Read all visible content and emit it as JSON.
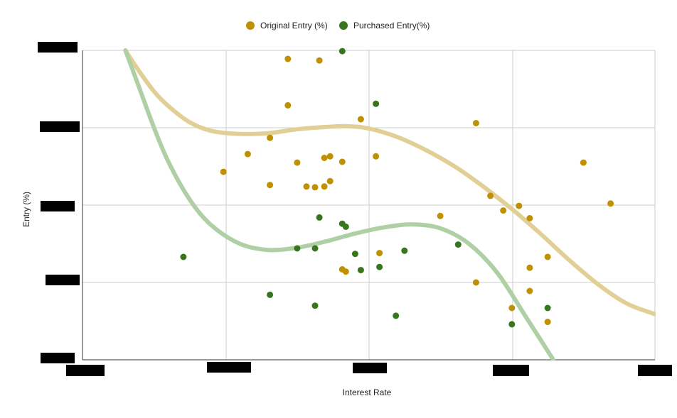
{
  "chart_data": {
    "type": "scatter",
    "title": "",
    "xlabel": "Interest Rate",
    "ylabel": "Entry (%)",
    "x_range": [
      0,
      8
    ],
    "y_range": [
      0,
      4
    ],
    "grid": true,
    "legend_position": "top",
    "tick_labels_redacted": true,
    "series": [
      {
        "name": "Original Entry (%)",
        "color": "#BF9000",
        "trend_color": "#E2CF96",
        "points": [
          [
            1.97,
            2.43
          ],
          [
            2.31,
            2.66
          ],
          [
            2.62,
            2.87
          ],
          [
            2.62,
            2.26
          ],
          [
            2.87,
            3.89
          ],
          [
            2.87,
            3.29
          ],
          [
            3.0,
            2.55
          ],
          [
            3.13,
            2.24
          ],
          [
            3.25,
            2.23
          ],
          [
            3.31,
            3.87
          ],
          [
            3.38,
            2.61
          ],
          [
            3.38,
            2.24
          ],
          [
            3.46,
            2.31
          ],
          [
            3.46,
            2.63
          ],
          [
            3.63,
            2.56
          ],
          [
            3.63,
            1.17
          ],
          [
            3.68,
            1.14
          ],
          [
            3.89,
            3.11
          ],
          [
            4.1,
            2.63
          ],
          [
            4.15,
            1.38
          ],
          [
            5.0,
            1.86
          ],
          [
            5.5,
            1.0
          ],
          [
            5.5,
            3.06
          ],
          [
            5.7,
            2.12
          ],
          [
            5.88,
            1.93
          ],
          [
            6.0,
            0.67
          ],
          [
            6.1,
            1.99
          ],
          [
            6.25,
            1.83
          ],
          [
            6.25,
            1.19
          ],
          [
            6.25,
            0.89
          ],
          [
            6.5,
            1.33
          ],
          [
            6.5,
            0.49
          ],
          [
            7.0,
            2.55
          ],
          [
            7.38,
            2.02
          ]
        ],
        "trendline": [
          [
            0.6,
            4.0
          ],
          [
            0.8,
            3.72
          ],
          [
            1.0,
            3.47
          ],
          [
            1.2,
            3.28
          ],
          [
            1.5,
            3.07
          ],
          [
            1.8,
            2.96
          ],
          [
            2.2,
            2.92
          ],
          [
            2.6,
            2.93
          ],
          [
            3.0,
            2.98
          ],
          [
            3.4,
            3.01
          ],
          [
            3.7,
            3.02
          ],
          [
            4.0,
            2.99
          ],
          [
            4.4,
            2.88
          ],
          [
            4.8,
            2.71
          ],
          [
            5.2,
            2.5
          ],
          [
            5.6,
            2.24
          ],
          [
            6.0,
            1.95
          ],
          [
            6.4,
            1.63
          ],
          [
            6.8,
            1.29
          ],
          [
            7.2,
            0.98
          ],
          [
            7.6,
            0.73
          ],
          [
            8.0,
            0.59
          ]
        ]
      },
      {
        "name": "Purchased Entry(%)",
        "color": "#38761D",
        "trend_color": "#AFCFA5",
        "points": [
          [
            3.63,
            3.99
          ],
          [
            4.1,
            3.31
          ],
          [
            3.31,
            1.84
          ],
          [
            3.63,
            1.76
          ],
          [
            3.68,
            1.72
          ],
          [
            3.0,
            1.44
          ],
          [
            3.25,
            1.44
          ],
          [
            1.41,
            1.33
          ],
          [
            3.81,
            1.37
          ],
          [
            3.89,
            1.16
          ],
          [
            4.15,
            1.2
          ],
          [
            4.5,
            1.41
          ],
          [
            5.25,
            1.49
          ],
          [
            2.62,
            0.84
          ],
          [
            3.25,
            0.7
          ],
          [
            4.38,
            0.57
          ],
          [
            6.0,
            0.46
          ],
          [
            6.5,
            0.67
          ]
        ],
        "trendline": [
          [
            0.6,
            4.0
          ],
          [
            0.8,
            3.5
          ],
          [
            1.0,
            3.0
          ],
          [
            1.2,
            2.56
          ],
          [
            1.5,
            2.07
          ],
          [
            1.8,
            1.74
          ],
          [
            2.2,
            1.5
          ],
          [
            2.6,
            1.42
          ],
          [
            3.0,
            1.45
          ],
          [
            3.4,
            1.53
          ],
          [
            3.8,
            1.63
          ],
          [
            4.2,
            1.71
          ],
          [
            4.6,
            1.75
          ],
          [
            5.0,
            1.7
          ],
          [
            5.4,
            1.5
          ],
          [
            5.8,
            1.12
          ],
          [
            6.2,
            0.55
          ],
          [
            6.58,
            0.0
          ]
        ]
      }
    ]
  }
}
